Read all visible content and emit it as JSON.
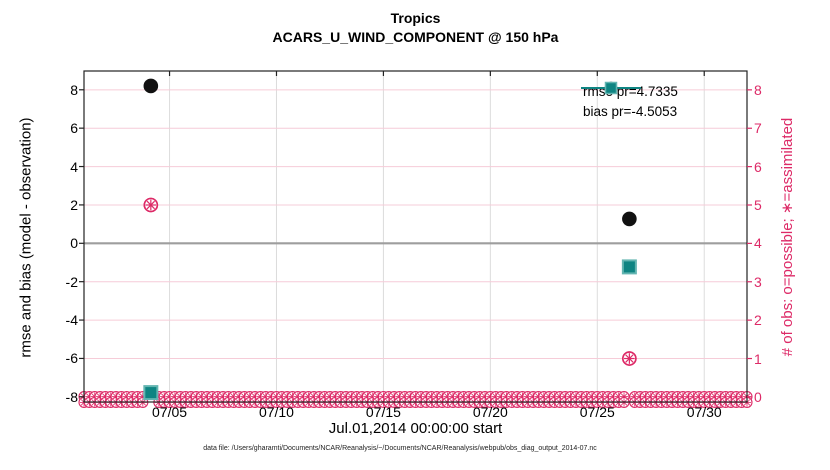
{
  "title": {
    "line1": "Tropics",
    "line2": "ACARS_U_WIND_COMPONENT @ 150 hPa"
  },
  "legend": {
    "items": [
      {
        "series": "rmse",
        "label": "rmse pr=4.7335"
      },
      {
        "series": "bias",
        "label": "bias pr=-4.5053"
      }
    ]
  },
  "footer": {
    "text": "data file: /Users/gharamti/Documents/NCAR/Reanalysis/~/Documents/NCAR/Reanalysis/webpub/obs_diag_output_2014-07.nc"
  },
  "colors": {
    "obs_pink": "#dd2a67",
    "grid_pink": "#f6ccd8",
    "grid_gray": "#dcdcdc",
    "teal_face": "#0e8482",
    "teal_edge": "#63b5b1",
    "black_marker": "#111111",
    "zero_line": "#9e9e9e",
    "axis": "#222222"
  },
  "chart_data": {
    "type": "scatter",
    "title": "Tropics",
    "subtitle": "ACARS_U_WIND_COMPONENT @ 150 hPa",
    "xlabel": "Jul.01,2014 00:00:00 start",
    "ylabel_left": "rmse and bias (model - observation)",
    "ylabel_right": "# of obs: o=possible; ∗=assimilated",
    "x_axis": {
      "start_day": 0,
      "end_day": 31,
      "tick_days": [
        4,
        9,
        14,
        19,
        24,
        29
      ],
      "tick_labels": [
        "07/05",
        "07/10",
        "07/15",
        "07/20",
        "07/25",
        "07/30"
      ]
    },
    "y_left": {
      "range": [
        -8.3,
        9.0
      ],
      "ticks": [
        8,
        6,
        4,
        2,
        0,
        -2,
        -4,
        -6,
        -8
      ]
    },
    "y_right": {
      "range": [
        -0.13,
        8.49
      ],
      "ticks": [
        8,
        7,
        6,
        5,
        4,
        3,
        2,
        1,
        0
      ]
    },
    "grid": true,
    "legend_position": "top-right",
    "series": [
      {
        "name": "rmse",
        "legend": "rmse pr=4.7335",
        "marker": "filled-circle",
        "axis": "left",
        "points": [
          {
            "day": 3.125,
            "value": 8.2
          },
          {
            "day": 25.5,
            "value": 1.27
          }
        ]
      },
      {
        "name": "bias",
        "legend": "bias pr=-4.5053",
        "marker": "filled-square",
        "axis": "left",
        "points": [
          {
            "day": 3.125,
            "value": -7.78
          },
          {
            "day": 25.5,
            "value": -1.23
          }
        ]
      },
      {
        "name": "obs-count",
        "marker": "circle-plus-asterisk",
        "axis": "right",
        "points": [
          {
            "day": 3.125,
            "possible": 5,
            "assimilated": 5
          },
          {
            "day": 25.5,
            "possible": 1,
            "assimilated": 1
          }
        ]
      }
    ],
    "zero_obs_band": {
      "description": "all other time bins have 0 possible and 0 assimilated obs",
      "start_day": 0,
      "end_day": 31,
      "step_days": 0.25,
      "value": 0,
      "gap_days": [
        3.125,
        25.5
      ]
    }
  }
}
